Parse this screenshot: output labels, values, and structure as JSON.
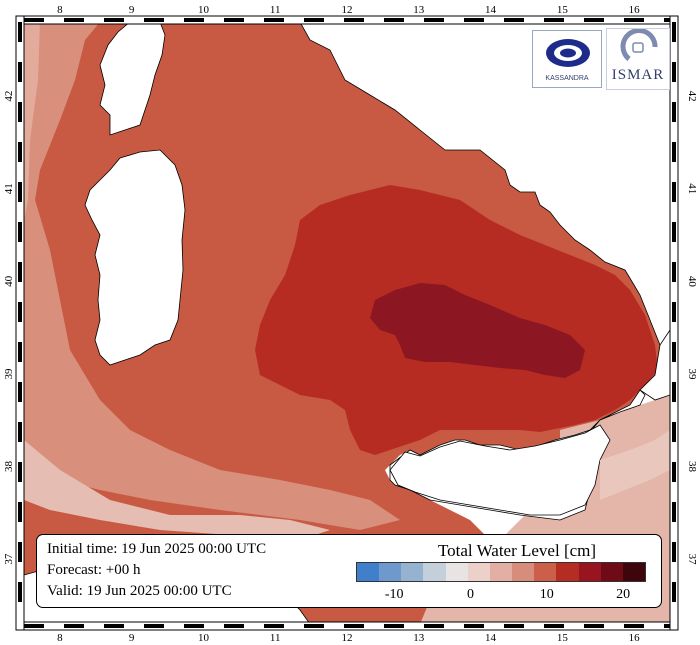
{
  "map": {
    "lon_ticks": [
      "8",
      "9",
      "10",
      "11",
      "12",
      "13",
      "14",
      "15",
      "16"
    ],
    "lat_ticks": [
      "37",
      "38",
      "39",
      "40",
      "41",
      "42"
    ],
    "extent": {
      "lon": [
        7.5,
        16.5
      ],
      "lat": [
        36.3,
        42.8
      ]
    }
  },
  "info": {
    "initial_time": "Initial time: 19 Jun 2025 00:00 UTC",
    "forecast": "Forecast: +00 h",
    "valid": "Valid: 19 Jun 2025 00:00 UTC"
  },
  "colorbar": {
    "title": "Total Water Level [cm]",
    "ticks": [
      "-10",
      "0",
      "10",
      "20"
    ],
    "tick_values": [
      -10,
      0,
      10,
      20
    ],
    "range": [
      -15,
      23
    ],
    "colors": [
      "#3f7fcb",
      "#6d99cc",
      "#96b2d1",
      "#c3cfdb",
      "#e8e4e3",
      "#ecd0ca",
      "#e3aea3",
      "#d88c7c",
      "#cc5f4a",
      "#b52c22",
      "#98141f",
      "#6e0b16",
      "#3f050d"
    ]
  },
  "logos": {
    "left": {
      "name": "KASSANDRA",
      "caption": "KASSANDRA"
    },
    "right": {
      "name": "ISMAR",
      "caption": "ISMAR"
    }
  },
  "colors": {
    "land": "#ffffff",
    "sea_base": "#c85a43",
    "sea_light": "#dca090",
    "sea_medium": "#d27a63",
    "sea_strong": "#b72c22",
    "sea_max": "#8c1622"
  }
}
